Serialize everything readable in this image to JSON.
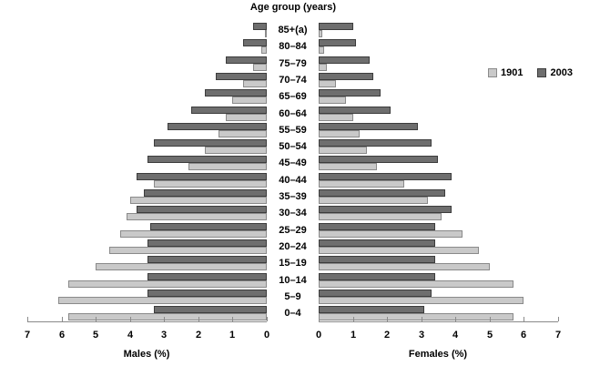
{
  "legend": {
    "items": [
      {
        "label": "1901",
        "color": "#c9c9c9",
        "border": "#8a8a8a"
      },
      {
        "label": "2003",
        "color": "#6e6e6e",
        "border": "#3c3c3c"
      }
    ]
  },
  "colors": {
    "fill_1901": "#c9c9c9",
    "border_1901": "#8a8a8a",
    "fill_2003": "#6e6e6e",
    "border_2003": "#3c3c3c",
    "axis": "#8a8a8a",
    "text": "#000000",
    "background": "#ffffff"
  },
  "chart_data": {
    "type": "bar",
    "subtype": "population_pyramid",
    "title": "Age group (years)",
    "xlabel_left": "Males (%)",
    "xlabel_right": "Females (%)",
    "xlim": [
      0,
      7
    ],
    "grid": false,
    "legend_position": "right",
    "tick_values_left": [
      7,
      6,
      5,
      4,
      3,
      2,
      1,
      0
    ],
    "tick_values_right": [
      0,
      1,
      2,
      3,
      4,
      5,
      6,
      7
    ],
    "categories_top_to_bottom": [
      "85+(a)",
      "80–84",
      "75–79",
      "70–74",
      "65–69",
      "60–64",
      "55–59",
      "50–54",
      "45–49",
      "40–44",
      "35–39",
      "30–34",
      "25–29",
      "20–24",
      "15–19",
      "10–14",
      "5–9",
      "0–4"
    ],
    "series": [
      {
        "name": "1901",
        "side": "males",
        "values": [
          0.05,
          0.15,
          0.4,
          0.7,
          1.0,
          1.2,
          1.4,
          1.8,
          2.3,
          3.3,
          4.0,
          4.1,
          4.3,
          4.6,
          5.0,
          5.8,
          6.1,
          5.8
        ]
      },
      {
        "name": "2003",
        "side": "males",
        "values": [
          0.4,
          0.7,
          1.2,
          1.5,
          1.8,
          2.2,
          2.9,
          3.3,
          3.5,
          3.8,
          3.6,
          3.8,
          3.4,
          3.5,
          3.5,
          3.5,
          3.5,
          3.3
        ]
      },
      {
        "name": "1901",
        "side": "females",
        "values": [
          0.1,
          0.15,
          0.25,
          0.5,
          0.8,
          1.0,
          1.2,
          1.4,
          1.7,
          2.5,
          3.2,
          3.6,
          4.2,
          4.7,
          5.0,
          5.7,
          6.0,
          5.7
        ]
      },
      {
        "name": "2003",
        "side": "females",
        "values": [
          1.0,
          1.1,
          1.5,
          1.6,
          1.8,
          2.1,
          2.9,
          3.3,
          3.5,
          3.9,
          3.7,
          3.9,
          3.4,
          3.4,
          3.4,
          3.4,
          3.3,
          3.1
        ]
      }
    ]
  }
}
